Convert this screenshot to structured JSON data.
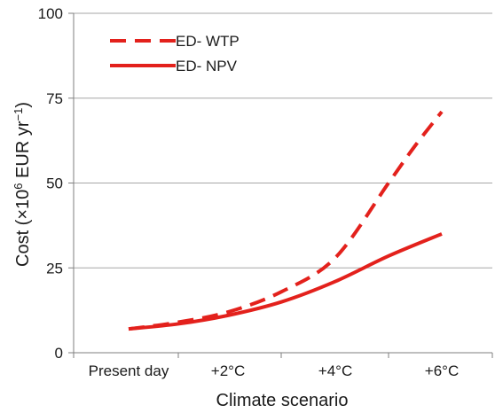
{
  "chart_data": {
    "type": "line",
    "xlabel": "Climate scenario",
    "ylabel_parts": {
      "prefix": "Cost (×10",
      "exp1": "6",
      "middle": " EUR yr",
      "exp2": "−1",
      "suffix": ")"
    },
    "categories": [
      "Present day",
      "+2°C",
      "+4°C",
      "+6°C"
    ],
    "ylim": [
      0,
      100
    ],
    "yticks": [
      "0",
      "25",
      "50",
      "75",
      "100"
    ],
    "grid": "horizontal",
    "legend_position": "top-left",
    "series": [
      {
        "name": "ED- WTP",
        "style": "dashed",
        "color": "#e3211c",
        "x": [
          0,
          0.5,
          1,
          1.5,
          2,
          2.5,
          2.75,
          3
        ],
        "y": [
          7,
          9,
          12,
          18,
          28,
          50,
          61,
          71
        ]
      },
      {
        "name": "ED- NPV",
        "style": "solid",
        "color": "#e3211c",
        "x": [
          0,
          0.5,
          1,
          1.5,
          2,
          2.5,
          3
        ],
        "y": [
          7,
          8.5,
          11,
          15,
          21,
          28.5,
          35
        ]
      }
    ]
  }
}
